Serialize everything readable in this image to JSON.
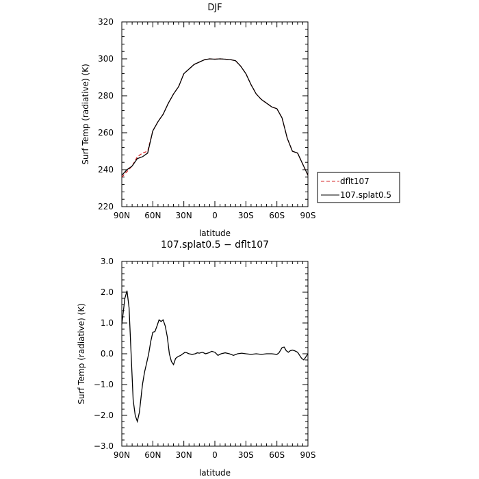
{
  "chart_data": [
    {
      "type": "line",
      "title": "DJF",
      "xlabel": "latitude",
      "ylabel": "Surf Temp (radiative) (K)",
      "xlim": [
        90,
        -90
      ],
      "ylim": [
        220,
        320
      ],
      "x_ticks": [
        "90N",
        "60N",
        "30N",
        "0",
        "30S",
        "60S",
        "90S"
      ],
      "y_ticks": [
        "220",
        "240",
        "260",
        "280",
        "300",
        "320"
      ],
      "legend": {
        "placement": "right"
      },
      "series": [
        {
          "name": "dflt107",
          "color": "#d62728",
          "dash": "dashed",
          "x": [
            90,
            85,
            80,
            75,
            70,
            65,
            60,
            55,
            50,
            45,
            40,
            35,
            30,
            20,
            10,
            5,
            0,
            -5,
            -10,
            -15,
            -20,
            -25,
            -30,
            -35,
            -40,
            -45,
            -50,
            -55,
            -60,
            -65,
            -70,
            -75,
            -80,
            -85,
            -90
          ],
          "y": [
            236,
            239,
            242,
            247,
            249,
            250,
            261,
            266,
            270,
            276,
            281,
            285,
            292,
            297,
            299.5,
            300,
            299.8,
            300,
            299.8,
            299.6,
            299,
            296,
            292,
            286,
            281,
            278,
            276,
            274,
            273,
            268,
            257,
            250,
            249,
            243,
            237
          ]
        },
        {
          "name": "107.splat0.5",
          "color": "#000000",
          "dash": "solid",
          "x": [
            90,
            85,
            80,
            75,
            70,
            65,
            60,
            55,
            50,
            45,
            40,
            35,
            30,
            20,
            10,
            5,
            0,
            -5,
            -10,
            -15,
            -20,
            -25,
            -30,
            -35,
            -40,
            -45,
            -50,
            -55,
            -60,
            -65,
            -70,
            -75,
            -80,
            -85,
            -90
          ],
          "y": [
            237,
            240,
            242,
            246,
            247,
            249,
            261,
            266,
            270,
            276,
            281,
            285,
            292,
            297,
            299.5,
            300,
            299.8,
            300,
            299.8,
            299.6,
            299,
            296,
            292,
            286,
            281,
            278,
            276,
            274,
            273,
            268,
            257,
            250,
            249,
            243,
            237
          ]
        }
      ]
    },
    {
      "type": "line",
      "title": "107.splat0.5 − dflt107",
      "xlabel": "latitude",
      "ylabel": "Surf Temp (radiative) (K)",
      "xlim": [
        90,
        -90
      ],
      "ylim": [
        -3,
        3
      ],
      "x_ticks": [
        "90N",
        "60N",
        "30N",
        "0",
        "30S",
        "60S",
        "90S"
      ],
      "y_ticks": [
        "−3.0",
        "−2.0",
        "−1.0",
        "0.0",
        "1.0",
        "2.0",
        "3.0"
      ],
      "series": [
        {
          "color": "#000000",
          "x": [
            90,
            87,
            85,
            83,
            81,
            79,
            77,
            75,
            73,
            72,
            70,
            68,
            66,
            64,
            62,
            60,
            58,
            56,
            54,
            52,
            50,
            48,
            46,
            44,
            42,
            40,
            38,
            36,
            35,
            33,
            31,
            30,
            29,
            27,
            25,
            22,
            19,
            17,
            15,
            12,
            9,
            6,
            3,
            0,
            -3,
            -6,
            -10,
            -14,
            -18,
            -22,
            -26,
            -30,
            -35,
            -40,
            -45,
            -50,
            -55,
            -60,
            -62,
            -65,
            -67,
            -69,
            -71,
            -73,
            -75,
            -77,
            -80,
            -82,
            -84,
            -86,
            -88,
            -90
          ],
          "y": [
            0.95,
            1.8,
            2.05,
            1.5,
            0.0,
            -1.5,
            -2.0,
            -2.2,
            -1.9,
            -1.6,
            -1.0,
            -0.6,
            -0.3,
            0.0,
            0.4,
            0.7,
            0.72,
            0.9,
            1.1,
            1.05,
            1.1,
            0.9,
            0.55,
            0.0,
            -0.25,
            -0.35,
            -0.15,
            -0.1,
            -0.08,
            -0.05,
            0.0,
            0.02,
            0.05,
            0.03,
            0.0,
            -0.02,
            0.0,
            0.03,
            0.02,
            0.05,
            0.0,
            0.03,
            0.08,
            0.05,
            -0.05,
            0.0,
            0.03,
            0.0,
            -0.05,
            0.0,
            0.02,
            0.0,
            -0.02,
            0.0,
            -0.02,
            0.0,
            0.0,
            -0.02,
            0.03,
            0.2,
            0.22,
            0.1,
            0.05,
            0.1,
            0.12,
            0.1,
            0.05,
            -0.05,
            -0.15,
            -0.2,
            -0.1,
            0.0
          ]
        }
      ]
    }
  ]
}
